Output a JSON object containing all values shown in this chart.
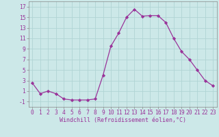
{
  "x": [
    0,
    1,
    2,
    3,
    4,
    5,
    6,
    7,
    8,
    9,
    10,
    11,
    12,
    13,
    14,
    15,
    16,
    17,
    18,
    19,
    20,
    21,
    22,
    23
  ],
  "y": [
    2.5,
    0.5,
    1.0,
    0.5,
    -0.5,
    -0.7,
    -0.7,
    -0.7,
    -0.5,
    4.0,
    9.5,
    12.0,
    15.0,
    16.5,
    15.2,
    15.3,
    15.3,
    14.0,
    11.0,
    8.5,
    7.0,
    5.0,
    3.0,
    2.0
  ],
  "line_color": "#993399",
  "marker": "D",
  "markersize": 2.2,
  "linewidth": 0.9,
  "xlim": [
    -0.5,
    23.5
  ],
  "ylim": [
    -2,
    18
  ],
  "yticks": [
    -1,
    1,
    3,
    5,
    7,
    9,
    11,
    13,
    15,
    17
  ],
  "xtick_labels": [
    "0",
    "1",
    "2",
    "3",
    "4",
    "5",
    "6",
    "7",
    "8",
    "9",
    "10",
    "11",
    "12",
    "13",
    "14",
    "15",
    "16",
    "17",
    "18",
    "19",
    "20",
    "21",
    "22",
    "23"
  ],
  "xlabel": "Windchill (Refroidissement éolien,°C)",
  "bg_color": "#cce8e8",
  "grid_color": "#b0d4d4",
  "tick_label_color": "#993399",
  "xlabel_color": "#993399",
  "xlabel_fontsize": 6.0,
  "tick_fontsize": 5.8
}
